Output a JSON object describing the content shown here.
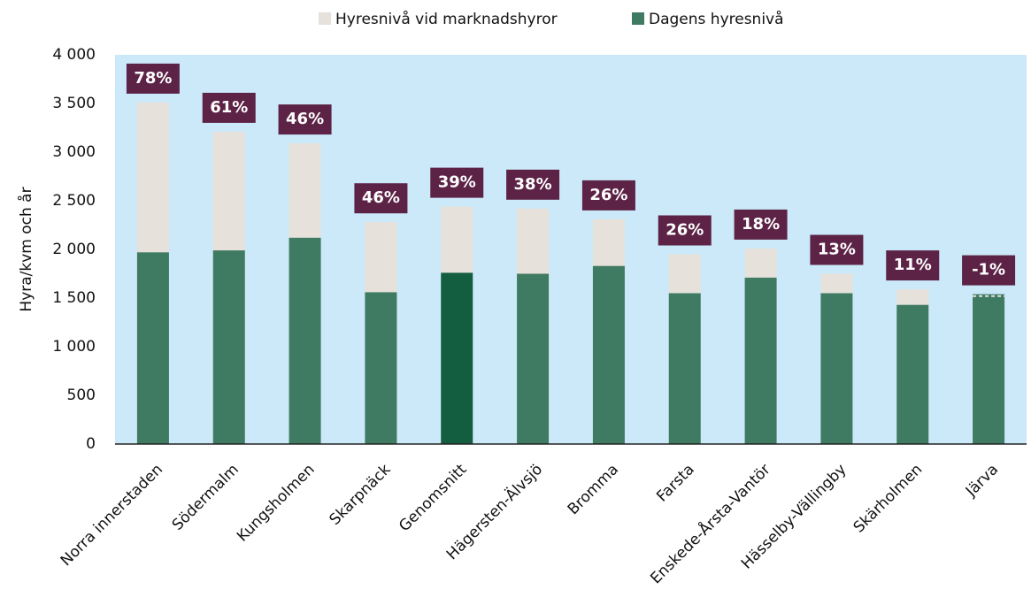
{
  "chart_data": {
    "type": "bar",
    "ylabel": "Hyra/kvm och år",
    "categories": [
      "Norra innerstaden",
      "Södermalm",
      "Kungsholmen",
      "Skarpnäck",
      "Genomsnitt",
      "Hägersten-Älvsjö",
      "Bromma",
      "Farsta",
      "Enskede-Årsta-Vantör",
      "Hässelby-Vällingby",
      "Skärholmen",
      "Järva"
    ],
    "series": [
      {
        "name": "Hyresnivå vid marknadshyror",
        "color": "#e6e1da",
        "values": [
          3510,
          3210,
          3090,
          2280,
          2440,
          2420,
          2310,
          1950,
          2010,
          1750,
          1590,
          1520
        ]
      },
      {
        "name": "Dagens hyresnivå",
        "color": "#3f7a63",
        "highlight_color": "#135e40",
        "highlight_index": 4,
        "values": [
          1970,
          1990,
          2120,
          1560,
          1760,
          1750,
          1830,
          1550,
          1710,
          1550,
          1430,
          1540
        ]
      }
    ],
    "annotations": [
      "78%",
      "61%",
      "46%",
      "46%",
      "39%",
      "38%",
      "26%",
      "26%",
      "18%",
      "13%",
      "11%",
      "-1%"
    ],
    "annotation_color": "#5c2346",
    "background": "#cce9f9",
    "ylim": [
      0,
      4000
    ],
    "yticks": [
      0,
      500,
      {
        "value": 1000,
        "label": "1 000"
      },
      {
        "value": 1500,
        "label": "1 500"
      },
      {
        "value": 2000,
        "label": "2 000"
      },
      {
        "value": 2500,
        "label": "2 500"
      },
      {
        "value": 3000,
        "label": "3 000"
      },
      {
        "value": 3500,
        "label": "3 500"
      },
      {
        "value": 4000,
        "label": "4 000"
      }
    ]
  }
}
